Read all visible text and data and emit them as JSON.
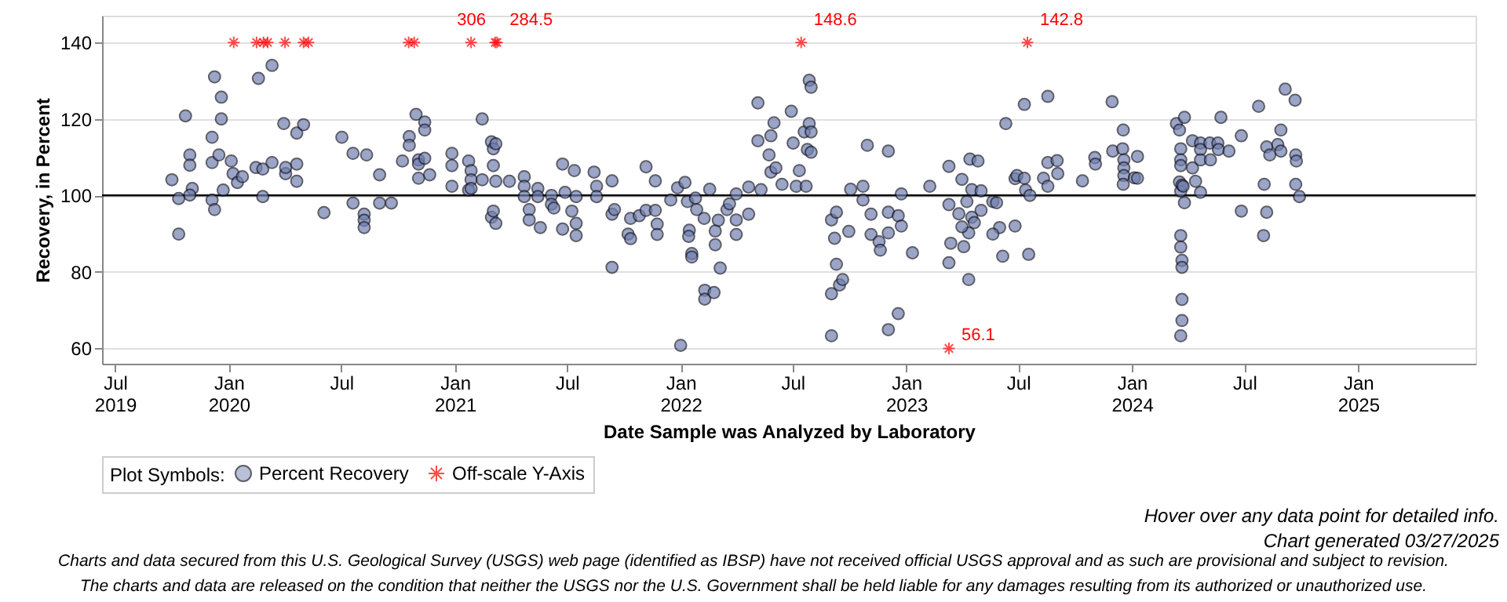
{
  "chart_data": {
    "type": "scatter",
    "xlabel": "Date Sample was Analyzed by Laboratory",
    "ylabel": "Recovery, in Percent",
    "legend_title": "Plot Symbols:",
    "legend": "bottom",
    "grid": "y",
    "xlim": [
      "2019-06-10",
      "2025-07-10"
    ],
    "ylim": [
      56,
      147
    ],
    "yticks": [
      60,
      80,
      100,
      120,
      140
    ],
    "xticks": [
      {
        "value": "2019-07-01",
        "label": "Jul 2019"
      },
      {
        "value": "2020-01-01",
        "label": "Jan 2020"
      },
      {
        "value": "2020-07-01",
        "label": "Jul"
      },
      {
        "value": "2021-01-01",
        "label": "Jan 2021"
      },
      {
        "value": "2021-07-01",
        "label": "Jul"
      },
      {
        "value": "2022-01-01",
        "label": "Jan 2022"
      },
      {
        "value": "2022-07-01",
        "label": "Jul"
      },
      {
        "value": "2023-01-01",
        "label": "Jan 2023"
      },
      {
        "value": "2023-07-01",
        "label": "Jul"
      },
      {
        "value": "2024-01-01",
        "label": "Jan 2024"
      },
      {
        "value": "2024-07-01",
        "label": "Jul"
      },
      {
        "value": "2025-01-01",
        "label": "Jan 2025"
      }
    ],
    "ref_lines": [
      {
        "axis": "y",
        "value": 100,
        "color": "#000000"
      }
    ],
    "series": [
      {
        "name": "Percent Recovery",
        "type": "scatter",
        "marker": "circle",
        "color": "#7080b0",
        "x": [
          "2019-10-01",
          "2019-10-12",
          "2019-10-12",
          "2019-10-23",
          "2019-10-30",
          "2019-10-30",
          "2019-11-03",
          "2019-10-30",
          "2019-12-05",
          "2019-12-05",
          "2019-12-05",
          "2019-12-09",
          "2019-12-09",
          "2019-12-20",
          "2019-12-20",
          "2019-12-16",
          "2019-12-23",
          "2020-01-05",
          "2020-01-08",
          "2020-01-15",
          "2020-01-23",
          "2020-02-18",
          "2020-03-11",
          "2020-02-14",
          "2020-02-25",
          "2020-02-25",
          "2020-03-11",
          "2020-03-30",
          "2020-04-02",
          "2020-04-02",
          "2020-04-20",
          "2020-04-20",
          "2020-04-20",
          "2020-05-01",
          "2020-06-03",
          "2020-07-02",
          "2020-07-20",
          "2020-07-20",
          "2020-08-11",
          "2020-08-07",
          "2020-08-07",
          "2020-08-07",
          "2020-09-01",
          "2020-09-01",
          "2020-09-20",
          "2020-10-08",
          "2020-10-19",
          "2020-10-19",
          "2020-10-30",
          "2020-11-13",
          "2020-11-13",
          "2020-11-03",
          "2020-11-03",
          "2020-11-13",
          "2020-11-03",
          "2020-11-21",
          "2020-12-27",
          "2020-12-27",
          "2020-12-27",
          "2021-01-23",
          "2021-01-27",
          "2021-01-27",
          "2021-01-23",
          "2021-01-27",
          "2021-02-14",
          "2021-03-01",
          "2021-03-04",
          "2021-03-08",
          "2021-03-04",
          "2021-02-14",
          "2021-03-08",
          "2021-03-01",
          "2021-03-04",
          "2021-03-08",
          "2021-03-30",
          "2021-04-23",
          "2021-04-23",
          "2021-04-23",
          "2021-05-01",
          "2021-05-01",
          "2021-05-15",
          "2021-05-15",
          "2021-05-19",
          "2021-06-06",
          "2021-06-06",
          "2021-06-10",
          "2021-06-24",
          "2021-06-24",
          "2021-06-28",
          "2021-07-13",
          "2021-07-09",
          "2021-07-16",
          "2021-07-16",
          "2021-07-16",
          "2021-08-14",
          "2021-08-18",
          "2021-08-18",
          "2021-09-12",
          "2021-09-12",
          "2021-09-12",
          "2021-09-16",
          "2021-10-08",
          "2021-10-12",
          "2021-10-12",
          "2021-10-26",
          "2021-11-06",
          "2021-11-06",
          "2021-11-21",
          "2021-11-21",
          "2021-11-24",
          "2021-11-24",
          "2021-12-16",
          "2022-01-01",
          "2021-12-27",
          "2022-01-08",
          "2022-01-12",
          "2022-01-15",
          "2022-01-14",
          "2022-01-19",
          "2022-01-19",
          "2022-01-25",
          "2022-01-27",
          "2022-02-08",
          "2022-02-09",
          "2022-02-09",
          "2022-02-17",
          "2022-02-24",
          "2022-02-26",
          "2022-02-26",
          "2022-03-03",
          "2022-03-06",
          "2022-03-17",
          "2022-03-21",
          "2022-04-01",
          "2022-04-01",
          "2022-04-01",
          "2022-04-21",
          "2022-04-21",
          "2022-05-06",
          "2022-05-06",
          "2022-05-11",
          "2022-05-24",
          "2022-05-27",
          "2022-05-27",
          "2022-06-01",
          "2022-06-04",
          "2022-06-14",
          "2022-06-29",
          "2022-07-02",
          "2022-07-07",
          "2022-07-12",
          "2022-07-20",
          "2022-07-23",
          "2022-07-25",
          "2022-07-28",
          "2022-07-31",
          "2022-07-28",
          "2022-07-31",
          "2022-07-31",
          "2022-09-02",
          "2022-09-02",
          "2022-09-10",
          "2022-09-15",
          "2022-09-20",
          "2022-09-07",
          "2022-09-02",
          "2022-09-10",
          "2022-09-30",
          "2022-10-03",
          "2022-10-23",
          "2022-10-23",
          "2022-10-30",
          "2022-11-05",
          "2022-11-05",
          "2022-11-18",
          "2022-11-20",
          "2022-12-03",
          "2022-12-03",
          "2022-12-03",
          "2022-12-03",
          "2022-12-19",
          "2022-12-19",
          "2022-12-24",
          "2022-12-24",
          "2023-01-11",
          "2023-02-08",
          "2023-03-11",
          "2023-03-11",
          "2023-03-11",
          "2023-03-14",
          "2023-04-01",
          "2023-03-27",
          "2023-04-04",
          "2023-04-09",
          "2023-04-12",
          "2023-04-14",
          "2023-04-27",
          "2023-04-17",
          "2023-04-17",
          "2023-04-21",
          "2023-05-02",
          "2023-05-02",
          "2023-04-12",
          "2023-04-01",
          "2023-05-21",
          "2023-05-27",
          "2023-06-01",
          "2023-05-21",
          "2023-06-06",
          "2023-06-11",
          "2023-06-26",
          "2023-06-26",
          "2023-06-29",
          "2023-07-11",
          "2023-07-11",
          "2023-07-13",
          "2023-07-18",
          "2023-07-20",
          "2023-08-11",
          "2023-08-18",
          "2023-08-18",
          "2023-08-18",
          "2023-09-03",
          "2023-09-02",
          "2023-10-13",
          "2023-11-02",
          "2023-11-03",
          "2023-11-30",
          "2023-12-01",
          "2023-12-18",
          "2023-12-17",
          "2023-12-19",
          "2023-12-19",
          "2023-12-19",
          "2023-12-18",
          "2024-01-05",
          "2024-01-10",
          "2024-01-10",
          "2024-03-13",
          "2024-03-18",
          "2024-03-26",
          "2024-03-20",
          "2024-03-20",
          "2024-03-20",
          "2024-03-18",
          "2024-03-20",
          "2024-03-22",
          "2024-03-26",
          "2024-03-24",
          "2024-03-20",
          "2024-03-20",
          "2024-03-22",
          "2024-03-22",
          "2024-03-22",
          "2024-03-22",
          "2024-03-20",
          "2024-04-08",
          "2024-04-08",
          "2024-04-13",
          "2024-04-21",
          "2024-04-21",
          "2024-04-21",
          "2024-04-21",
          "2024-05-06",
          "2024-05-07",
          "2024-05-19",
          "2024-05-20",
          "2024-05-24",
          "2024-06-06",
          "2024-06-26",
          "2024-06-26",
          "2024-07-24",
          "2024-08-01",
          "2024-08-02",
          "2024-08-06",
          "2024-08-06",
          "2024-08-11",
          "2024-08-24",
          "2024-08-29",
          "2024-08-29",
          "2024-09-05",
          "2024-09-21",
          "2024-09-22",
          "2024-09-23",
          "2024-09-22",
          "2024-09-28"
        ],
        "values": [
          104.1,
          99.2,
          89.9,
          120.8,
          110.6,
          107.9,
          101.8,
          100.1,
          115.2,
          108.6,
          98.8,
          96.3,
          131.0,
          125.7,
          120.0,
          110.6,
          101.4,
          109.0,
          105.7,
          103.4,
          104.9,
          130.6,
          134.0,
          107.3,
          106.9,
          99.7,
          108.6,
          118.8,
          105.7,
          107.3,
          108.2,
          103.7,
          116.3,
          118.5,
          95.5,
          115.2,
          111.0,
          98.0,
          110.6,
          95.1,
          93.5,
          91.6,
          105.4,
          98.0,
          98.0,
          109.0,
          115.4,
          113.1,
          121.2,
          119.2,
          117.1,
          109.3,
          108.2,
          109.7,
          104.5,
          105.4,
          111.0,
          107.8,
          102.4,
          109.0,
          106.5,
          104.1,
          101.4,
          101.8,
          120.0,
          114.0,
          112.2,
          113.5,
          107.8,
          104.1,
          103.7,
          94.3,
          95.9,
          92.7,
          103.7,
          104.9,
          102.4,
          99.7,
          96.3,
          93.6,
          101.8,
          99.7,
          91.6,
          100.0,
          97.7,
          96.7,
          108.2,
          91.2,
          100.8,
          106.5,
          95.9,
          99.7,
          92.7,
          89.5,
          106.1,
          102.4,
          99.7,
          103.8,
          95.1,
          81.2,
          96.3,
          89.9,
          88.7,
          94.0,
          94.7,
          107.5,
          96.1,
          103.8,
          96.1,
          92.5,
          89.8,
          98.8,
          60.8,
          102.0,
          103.4,
          98.4,
          90.9,
          89.3,
          84.8,
          83.9,
          99.3,
          96.3,
          94.0,
          75.2,
          72.9,
          101.6,
          74.6,
          87.1,
          90.7,
          93.5,
          81.0,
          96.3,
          97.8,
          100.4,
          93.6,
          89.8,
          102.2,
          95.1,
          124.2,
          114.3,
          101.5,
          110.6,
          106.1,
          115.6,
          119.0,
          107.2,
          102.9,
          122.0,
          113.7,
          102.4,
          106.5,
          116.6,
          102.4,
          112.0,
          130.1,
          128.3,
          118.8,
          116.6,
          111.3,
          63.3,
          74.3,
          82.0,
          76.6,
          78.0,
          88.8,
          93.6,
          95.6,
          90.6,
          101.6,
          102.4,
          98.8,
          113.1,
          95.1,
          89.8,
          87.9,
          85.7,
          111.6,
          95.6,
          64.9,
          90.2,
          94.7,
          69.1,
          100.4,
          92.0,
          85.0,
          102.4,
          107.6,
          97.6,
          82.4,
          87.5,
          104.2,
          95.2,
          86.6,
          98.4,
          78.0,
          109.5,
          109.0,
          101.5,
          94.3,
          92.9,
          101.2,
          96.1,
          90.2,
          91.8,
          98.4,
          98.1,
          91.6,
          89.9,
          84.1,
          118.8,
          92.0,
          104.4,
          105.2,
          104.5,
          123.8,
          101.4,
          84.6,
          100.0,
          104.5,
          125.9,
          108.6,
          102.4,
          105.7,
          109.1,
          103.8,
          109.9,
          108.2,
          124.5,
          111.6,
          117.1,
          112.2,
          109.3,
          107.2,
          105.2,
          102.9,
          104.6,
          110.2,
          104.5,
          118.8,
          117.1,
          120.4,
          112.2,
          109.3,
          107.8,
          103.5,
          101.1,
          102.7,
          98.1,
          102.4,
          89.5,
          86.5,
          83.0,
          81.2,
          72.8,
          67.3,
          63.3,
          114.3,
          107.2,
          103.7,
          113.7,
          112.0,
          109.3,
          100.8,
          113.7,
          109.3,
          113.7,
          112.0,
          120.4,
          111.6,
          115.6,
          95.9,
          123.3,
          89.5,
          102.9,
          112.7,
          95.6,
          110.6,
          113.3,
          117.1,
          111.6,
          127.8,
          124.9,
          110.6,
          109.0,
          102.9,
          99.7
        ]
      },
      {
        "name": "Off-scale Y-Axis",
        "type": "scatter",
        "marker": "cross",
        "color": "#ff0000",
        "x": [
          "2020-01-09",
          "2020-02-15",
          "2020-02-26",
          "2020-03-04",
          "2020-04-01",
          "2020-05-01",
          "2020-05-09",
          "2020-10-18",
          "2020-10-27",
          "2021-01-27",
          "2021-03-07",
          "2021-03-10",
          "2022-07-15",
          "2023-03-11",
          "2023-07-16"
        ],
        "values": [
          140,
          140,
          140,
          140,
          140,
          140,
          140,
          140,
          140,
          140,
          140,
          140,
          140,
          60,
          140
        ]
      }
    ],
    "annotations": [
      {
        "text": "306",
        "x": "2021-03-07",
        "y": 140
      },
      {
        "text": "284.5",
        "x": "2021-03-10",
        "y": 140
      },
      {
        "text": "148.6",
        "x": "2022-07-15",
        "y": 140
      },
      {
        "text": "142.8",
        "x": "2023-07-16",
        "y": 140
      },
      {
        "text": "56.1",
        "x": "2023-03-11",
        "y": 60
      },
      "Hover over any data point for detailed info.",
      "Chart generated 03/27/2025",
      "Charts and data secured from this U.S. Geological Survey (USGS) web page (identified as IBSP) have not received official USGS approval and as such are provisional and subject to revision.",
      "The charts and data are released on the condition that neither the USGS nor the U.S. Government shall be held liable for any damages resulting from its authorized or unauthorized use."
    ]
  }
}
